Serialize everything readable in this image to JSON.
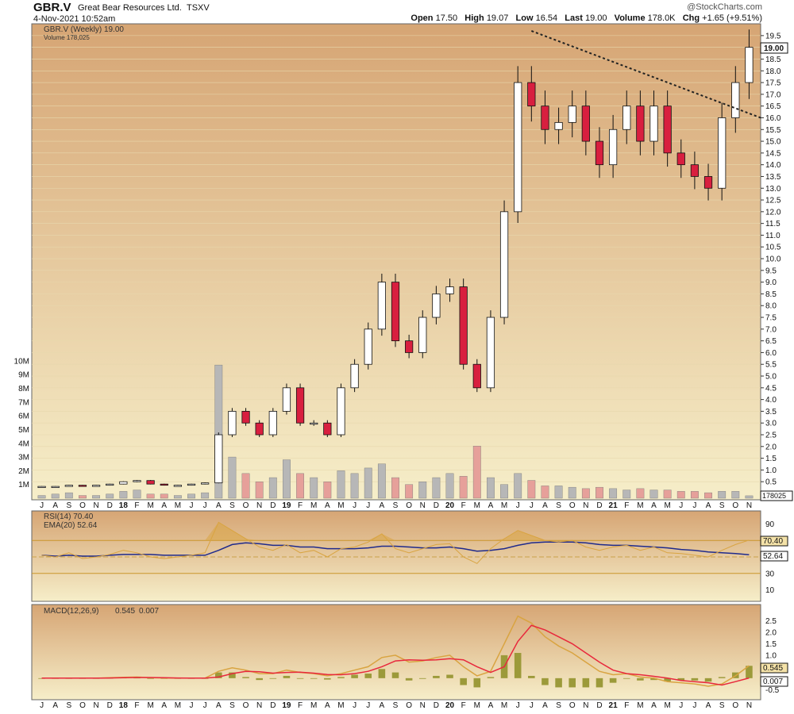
{
  "header": {
    "ticker": "GBR.V",
    "company": "Great Bear Resources Ltd.",
    "exchange": "TSXV",
    "timestamp": "4-Nov-2021 10:52am",
    "brand": "@StockCharts.com",
    "quote": {
      "open_label": "Open",
      "open": "17.50",
      "high_label": "High",
      "high": "19.07",
      "low_label": "Low",
      "low": "16.54",
      "last_label": "Last",
      "last": "19.00",
      "volume_label": "Volume",
      "volume": "178.0K",
      "chg_label": "Chg",
      "chg": "+1.65 (+9.51%)"
    }
  },
  "price_panel": {
    "legend_main": "GBR.V (Weekly) 19.00",
    "legend_volume": "Volume 178,025",
    "last_badge": "19.00",
    "volume_badge": "178025",
    "up_color": "#ffffff",
    "down_color": "#d81f3f",
    "volume_up_color": "#b7b7b7",
    "volume_down_color": "#e6a09a",
    "background_top": "#d7a977",
    "background_bottom": "#f5edc8"
  },
  "rsi_panel": {
    "legend_rsi": "RSI(14) 70.40",
    "legend_ema": "EMA(20) 52.64",
    "badge_rsi": "70.40",
    "badge_ema": "52.64",
    "rsi_color": "#d9a441",
    "ema_color": "#1f2a8c"
  },
  "macd_panel": {
    "legend_name": "MACD(12,26,9)",
    "legend_macd": "0.545",
    "legend_signal": "0.007",
    "badge_macd": "0.545",
    "badge_signal": "0.007",
    "macd_color": "#d9a441",
    "signal_color": "#e8283c",
    "hist_color": "#9c9a3a"
  },
  "x_axis_labels": [
    "J",
    "A",
    "S",
    "O",
    "N",
    "D",
    "18",
    "F",
    "M",
    "A",
    "M",
    "J",
    "J",
    "A",
    "S",
    "O",
    "N",
    "D",
    "19",
    "F",
    "M",
    "A",
    "M",
    "J",
    "J",
    "A",
    "S",
    "O",
    "N",
    "D",
    "20",
    "F",
    "M",
    "A",
    "M",
    "J",
    "J",
    "A",
    "S",
    "O",
    "N",
    "D",
    "21",
    "F",
    "M",
    "A",
    "M",
    "J",
    "J",
    "A",
    "S",
    "O",
    "N"
  ],
  "chart_data": [
    {
      "type": "candlestick",
      "title": "GBR.V (Weekly)",
      "y_ticks": [
        "0.5",
        "1.0",
        "1.5",
        "2.0",
        "2.5",
        "3.0",
        "3.5",
        "4.0",
        "4.5",
        "5.0",
        "5.5",
        "6.0",
        "6.5",
        "7.0",
        "7.5",
        "8.0",
        "8.5",
        "9.0",
        "9.5",
        "10.0",
        "10.5",
        "11.0",
        "11.5",
        "12.0",
        "12.5",
        "13.0",
        "13.5",
        "14.0",
        "14.5",
        "15.0",
        "15.5",
        "16.0",
        "16.5",
        "17.0",
        "17.5",
        "18.0",
        "18.5",
        "19.0",
        "19.5"
      ],
      "ylim": [
        0,
        19.8
      ],
      "x": [
        "2017-07",
        "2017-08",
        "2017-09",
        "2017-10",
        "2017-11",
        "2017-12",
        "2018-01",
        "2018-02",
        "2018-03",
        "2018-04",
        "2018-05",
        "2018-06",
        "2018-07",
        "2018-08",
        "2018-09",
        "2018-10",
        "2018-11",
        "2018-12",
        "2019-01",
        "2019-02",
        "2019-03",
        "2019-04",
        "2019-05",
        "2019-06",
        "2019-07",
        "2019-08",
        "2019-09",
        "2019-10",
        "2019-11",
        "2019-12",
        "2020-01",
        "2020-02",
        "2020-03",
        "2020-04",
        "2020-05",
        "2020-06",
        "2020-07",
        "2020-08",
        "2020-09",
        "2020-10",
        "2020-11",
        "2020-12",
        "2021-01",
        "2021-02",
        "2021-03",
        "2021-04",
        "2021-05",
        "2021-06",
        "2021-07",
        "2021-08",
        "2021-09",
        "2021-10",
        "2021-11"
      ],
      "close": [
        0.3,
        0.3,
        0.35,
        0.3,
        0.35,
        0.4,
        0.5,
        0.55,
        0.4,
        0.35,
        0.35,
        0.4,
        0.45,
        2.5,
        3.5,
        3.0,
        2.5,
        3.5,
        4.5,
        3.0,
        3.0,
        2.5,
        4.5,
        5.5,
        7.0,
        9.0,
        6.5,
        6.0,
        7.5,
        8.5,
        8.8,
        5.5,
        4.5,
        7.5,
        12.0,
        17.5,
        16.5,
        15.5,
        15.8,
        16.5,
        15.0,
        14.0,
        15.5,
        16.5,
        15.0,
        16.5,
        14.5,
        14.0,
        13.5,
        13.0,
        16.0,
        17.5,
        19.0
      ],
      "trendline": {
        "from": [
          "2020-07",
          19.7
        ],
        "to": [
          "2021-11",
          16.0
        ],
        "style": "dotted"
      },
      "volume_ticks": [
        "1M",
        "2M",
        "3M",
        "4M",
        "5M",
        "6M",
        "7M",
        "8M",
        "9M",
        "10M"
      ],
      "volume_millions": [
        0.2,
        0.3,
        0.4,
        0.2,
        0.2,
        0.3,
        0.5,
        0.6,
        0.3,
        0.3,
        0.2,
        0.3,
        0.4,
        9.7,
        3.0,
        1.8,
        1.2,
        1.5,
        2.8,
        1.8,
        1.5,
        1.2,
        2.0,
        1.8,
        2.2,
        2.5,
        1.5,
        1.0,
        1.2,
        1.5,
        1.8,
        1.6,
        3.8,
        1.5,
        1.0,
        1.8,
        1.3,
        0.9,
        0.9,
        0.8,
        0.7,
        0.8,
        0.7,
        0.6,
        0.7,
        0.6,
        0.6,
        0.5,
        0.5,
        0.4,
        0.5,
        0.5,
        0.178
      ]
    },
    {
      "type": "line",
      "title": "RSI(14)",
      "y_ticks": [
        "10",
        "30",
        "50",
        "70",
        "90"
      ],
      "ylim": [
        0,
        100
      ],
      "reference_lines": [
        30,
        50,
        70
      ],
      "x": [
        "2017-07",
        "2017-08",
        "2017-09",
        "2017-10",
        "2017-11",
        "2017-12",
        "2018-01",
        "2018-02",
        "2018-03",
        "2018-04",
        "2018-05",
        "2018-06",
        "2018-07",
        "2018-08",
        "2018-09",
        "2018-10",
        "2018-11",
        "2018-12",
        "2019-01",
        "2019-02",
        "2019-03",
        "2019-04",
        "2019-05",
        "2019-06",
        "2019-07",
        "2019-08",
        "2019-09",
        "2019-10",
        "2019-11",
        "2019-12",
        "2020-01",
        "2020-02",
        "2020-03",
        "2020-04",
        "2020-05",
        "2020-06",
        "2020-07",
        "2020-08",
        "2020-09",
        "2020-10",
        "2020-11",
        "2020-12",
        "2021-01",
        "2021-02",
        "2021-03",
        "2021-04",
        "2021-05",
        "2021-06",
        "2021-07",
        "2021-08",
        "2021-09",
        "2021-10",
        "2021-11"
      ],
      "series": [
        {
          "name": "RSI(14)",
          "values": [
            52,
            50,
            55,
            48,
            50,
            53,
            58,
            55,
            50,
            48,
            50,
            52,
            55,
            92,
            82,
            72,
            62,
            58,
            65,
            55,
            58,
            50,
            60,
            62,
            68,
            78,
            60,
            55,
            60,
            65,
            66,
            50,
            42,
            60,
            72,
            82,
            76,
            70,
            68,
            70,
            62,
            58,
            62,
            64,
            58,
            62,
            55,
            54,
            52,
            50,
            58,
            65,
            70.4
          ]
        },
        {
          "name": "EMA(20)",
          "values": [
            52,
            51,
            52,
            51,
            51,
            52,
            53,
            53,
            53,
            52,
            52,
            52,
            52,
            58,
            65,
            67,
            66,
            64,
            64,
            62,
            62,
            60,
            60,
            60,
            61,
            63,
            63,
            62,
            61,
            61,
            62,
            60,
            57,
            58,
            60,
            64,
            67,
            68,
            68,
            68,
            67,
            65,
            64,
            64,
            63,
            62,
            61,
            59,
            58,
            56,
            55,
            54,
            52.64
          ]
        }
      ]
    },
    {
      "type": "line",
      "title": "MACD(12,26,9)",
      "y_ticks": [
        "-0.5",
        "0.5",
        "1.0",
        "1.5",
        "2.0",
        "2.5"
      ],
      "ylim": [
        -0.8,
        3.0
      ],
      "x": [
        "2017-07",
        "2017-08",
        "2017-09",
        "2017-10",
        "2017-11",
        "2017-12",
        "2018-01",
        "2018-02",
        "2018-03",
        "2018-04",
        "2018-05",
        "2018-06",
        "2018-07",
        "2018-08",
        "2018-09",
        "2018-10",
        "2018-11",
        "2018-12",
        "2019-01",
        "2019-02",
        "2019-03",
        "2019-04",
        "2019-05",
        "2019-06",
        "2019-07",
        "2019-08",
        "2019-09",
        "2019-10",
        "2019-11",
        "2019-12",
        "2020-01",
        "2020-02",
        "2020-03",
        "2020-04",
        "2020-05",
        "2020-06",
        "2020-07",
        "2020-08",
        "2020-09",
        "2020-10",
        "2020-11",
        "2020-12",
        "2021-01",
        "2021-02",
        "2021-03",
        "2021-04",
        "2021-05",
        "2021-06",
        "2021-07",
        "2021-08",
        "2021-09",
        "2021-10",
        "2021-11"
      ],
      "series": [
        {
          "name": "MACD",
          "values": [
            0,
            0,
            0,
            0,
            0,
            0.02,
            0.04,
            0.05,
            0.02,
            0.01,
            0,
            0,
            0,
            0.3,
            0.45,
            0.35,
            0.2,
            0.2,
            0.35,
            0.25,
            0.2,
            0.1,
            0.2,
            0.35,
            0.5,
            0.9,
            1.0,
            0.7,
            0.75,
            0.9,
            1.0,
            0.5,
            0.1,
            0.3,
            1.5,
            2.7,
            2.4,
            1.8,
            1.4,
            1.1,
            0.7,
            0.3,
            0.15,
            0.2,
            0.05,
            0.0,
            -0.15,
            -0.2,
            -0.25,
            -0.35,
            -0.25,
            0.1,
            0.545
          ]
        },
        {
          "name": "Signal",
          "values": [
            0,
            0,
            0,
            0,
            0,
            0.01,
            0.02,
            0.03,
            0.03,
            0.02,
            0.01,
            0,
            0,
            0.05,
            0.2,
            0.3,
            0.28,
            0.22,
            0.25,
            0.26,
            0.22,
            0.16,
            0.15,
            0.2,
            0.3,
            0.5,
            0.75,
            0.8,
            0.78,
            0.8,
            0.85,
            0.8,
            0.5,
            0.25,
            0.5,
            1.6,
            2.3,
            2.1,
            1.8,
            1.5,
            1.1,
            0.7,
            0.35,
            0.2,
            0.15,
            0.08,
            0.0,
            -0.1,
            -0.15,
            -0.2,
            -0.3,
            -0.15,
            0.007
          ]
        }
      ]
    }
  ]
}
